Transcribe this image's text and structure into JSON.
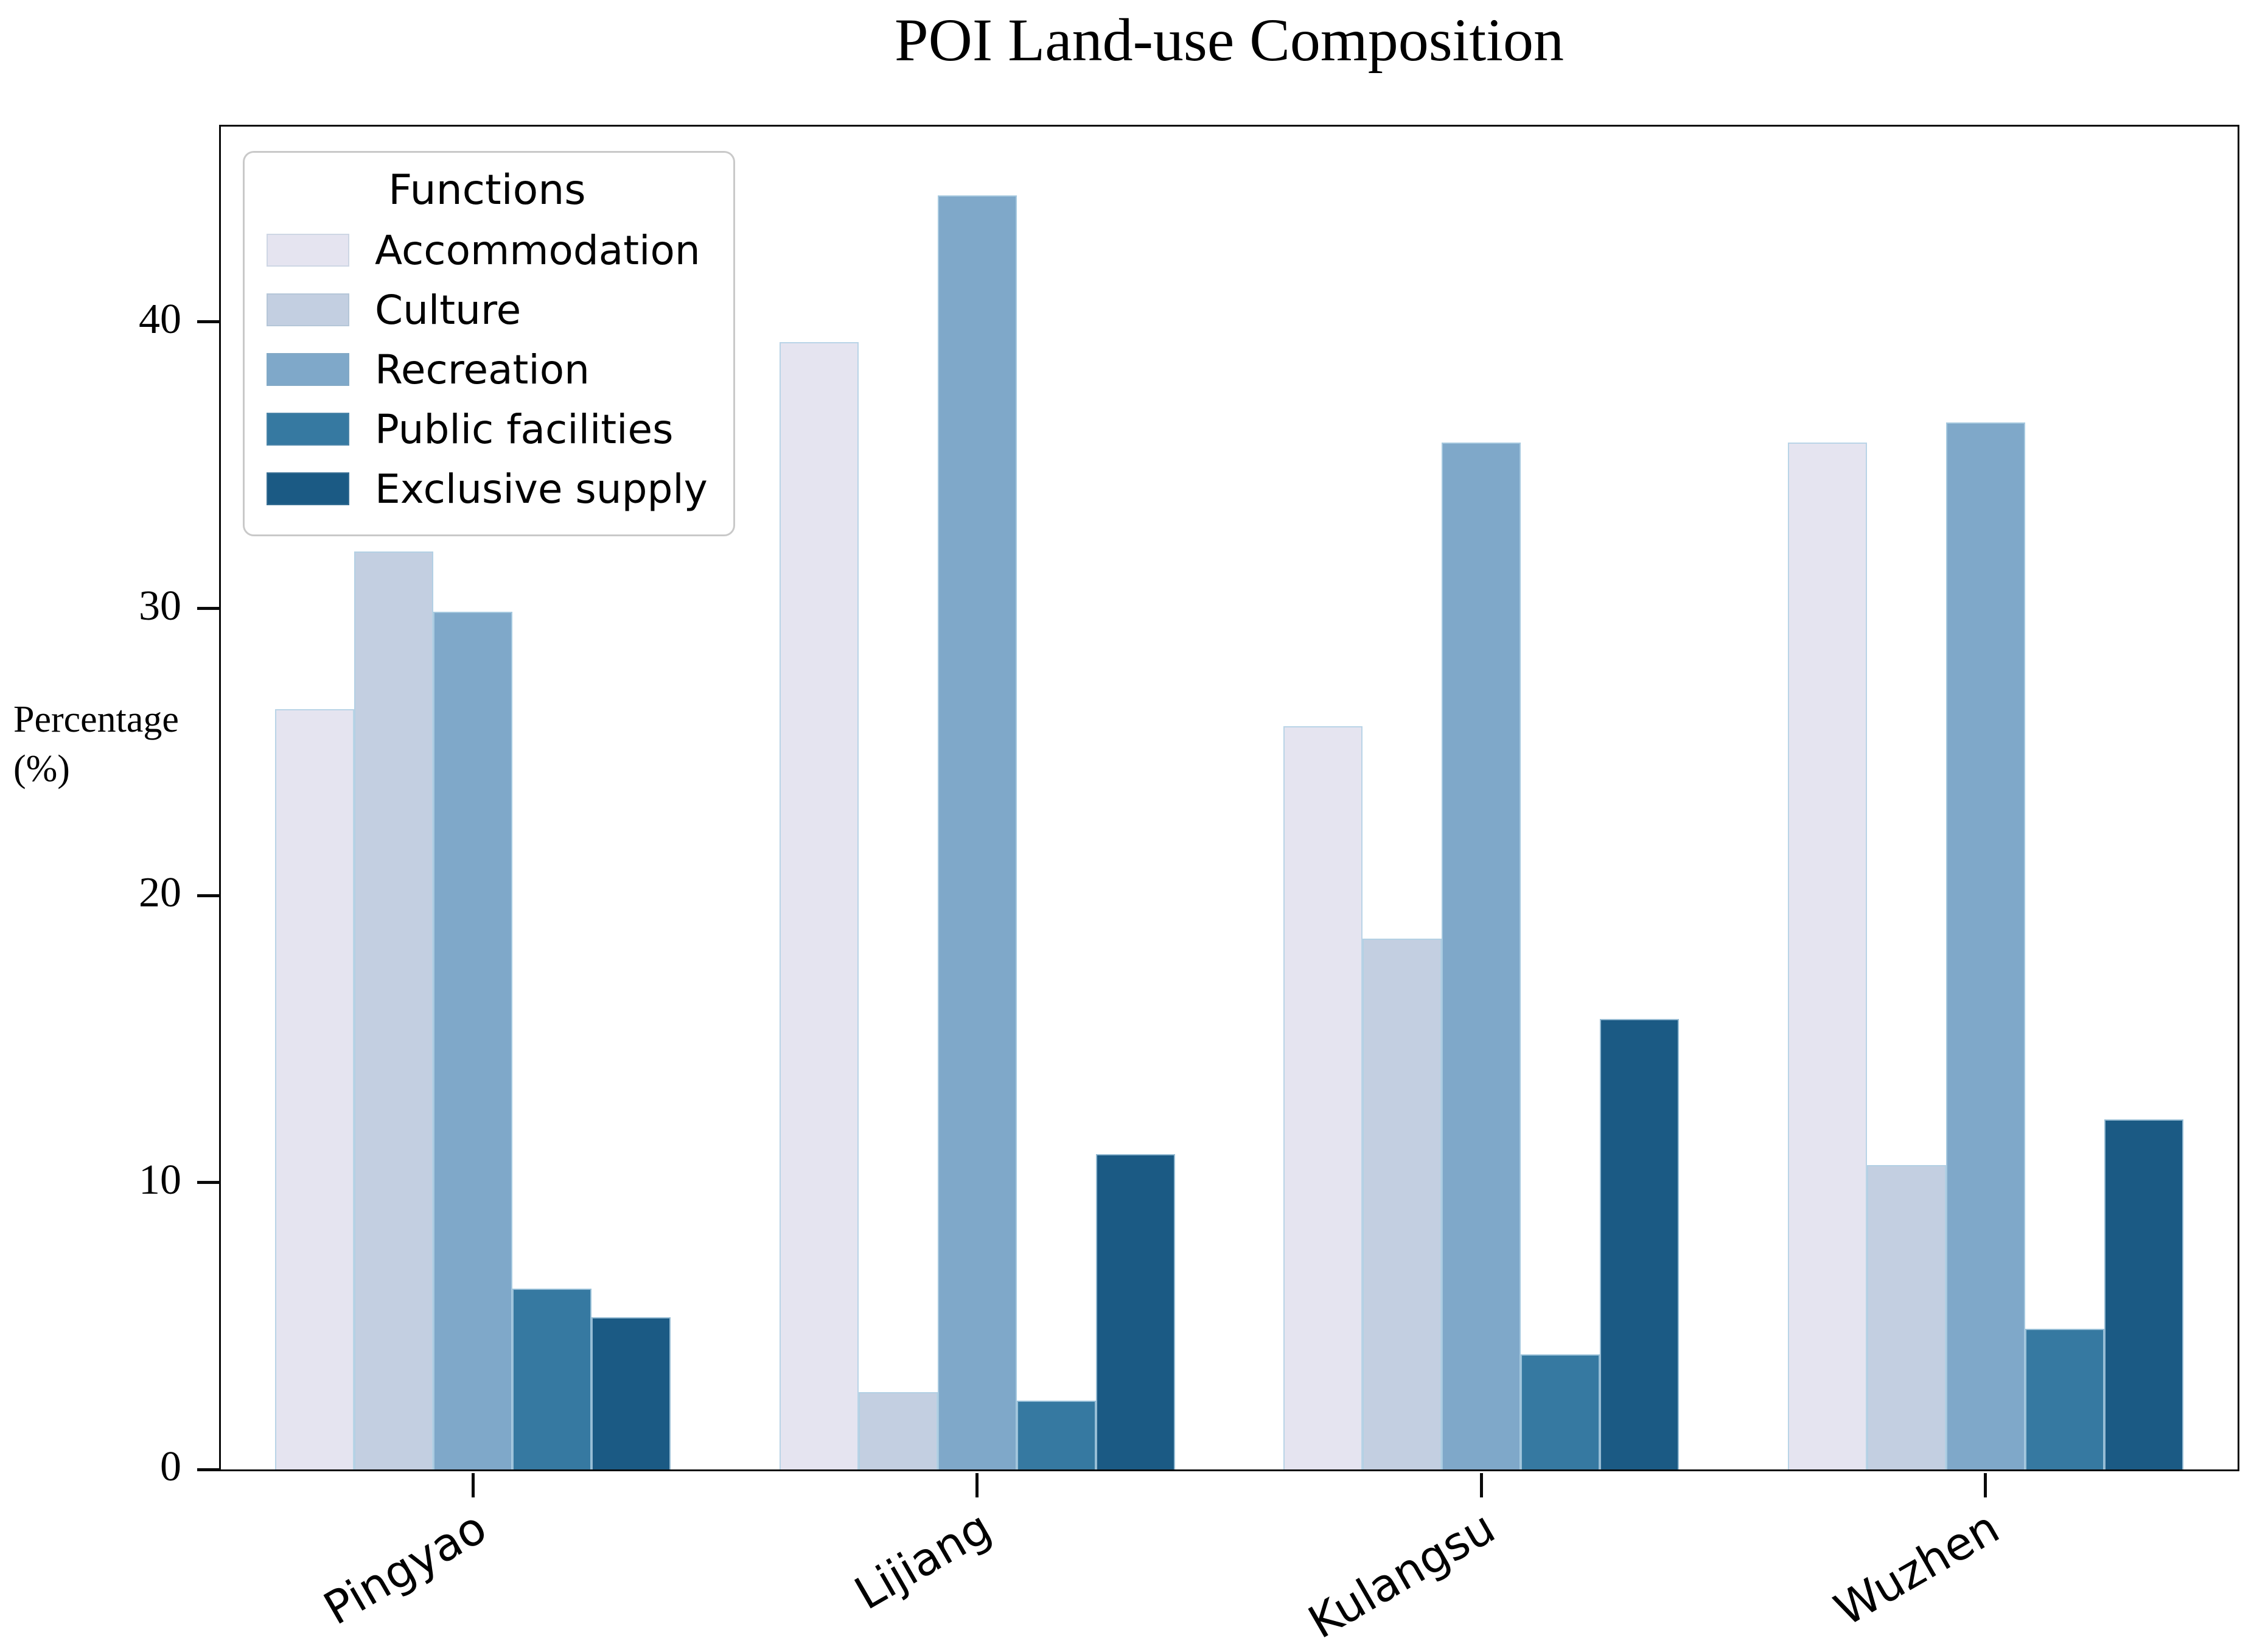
{
  "title": "POI Land-use Composition",
  "y_axis": {
    "label_line1": "Percentage",
    "label_line2": "(%)"
  },
  "legend": {
    "title": "Functions"
  },
  "chart_data": {
    "type": "bar",
    "title": "POI Land-use Composition",
    "ylabel": "Percentage (%)",
    "categories": [
      "Pingyao",
      "Lijiang",
      "Kulangsu",
      "Wuzhen"
    ],
    "series": [
      {
        "name": "Accommodation",
        "color": "#e5e4f0",
        "values": [
          26.5,
          39.3,
          25.9,
          35.8
        ]
      },
      {
        "name": "Culture",
        "color": "#c3cfe1",
        "values": [
          32.0,
          2.7,
          18.5,
          10.6
        ]
      },
      {
        "name": "Recreation",
        "color": "#7fa8c9",
        "values": [
          29.9,
          44.4,
          35.8,
          36.5
        ]
      },
      {
        "name": "Public facilities",
        "color": "#3679a1",
        "values": [
          6.3,
          2.4,
          4.0,
          4.9
        ]
      },
      {
        "name": "Exclusive supply",
        "color": "#1b5a84",
        "values": [
          5.3,
          11.0,
          15.7,
          12.2
        ]
      }
    ],
    "yticks": [
      0,
      10,
      20,
      30,
      40
    ],
    "ylim": [
      0,
      46.8
    ],
    "xtick_rotation_deg": 30,
    "legend_title": "Functions",
    "legend_position": "upper left",
    "grid": false,
    "bar_edge_color": "#afd0e4",
    "axis_color": "#0a0a0a",
    "background_color": "#ffffff"
  }
}
